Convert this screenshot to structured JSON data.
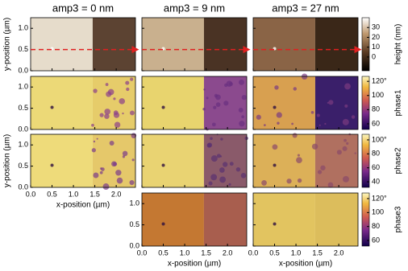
{
  "figure": {
    "columns": [
      "amp3 = 0 nm",
      "amp3 = 9 nm",
      "amp3 = 27 nm"
    ],
    "x_label": "x-position (µm)",
    "y_label": "y-position (µm)",
    "xlim": [
      0,
      2.45
    ],
    "ylim": [
      0,
      1.25
    ],
    "xticks": [
      {
        "value": 0,
        "label": "0.0"
      },
      {
        "value": 0.5,
        "label": "0.5"
      },
      {
        "value": 1,
        "label": "1.0"
      },
      {
        "value": 1.5,
        "label": "1.5"
      },
      {
        "value": 2,
        "label": "2.0"
      }
    ],
    "yticks": [
      {
        "value": 0,
        "label": "0.0"
      },
      {
        "value": 0.5,
        "label": "0.5"
      },
      {
        "value": 1,
        "label": "1.0"
      }
    ],
    "rows": [
      {
        "label": "height (nm)",
        "lim": [
          -14,
          40
        ],
        "ticks": [
          0,
          10,
          20,
          30
        ]
      },
      {
        "label": "phase1",
        "lim": [
          52,
          127
        ],
        "ticks": [
          60,
          80,
          100,
          {
            "value": 120,
            "label": "120°"
          }
        ]
      },
      {
        "label": "phase2",
        "lim": [
          32,
          108
        ],
        "ticks": [
          40,
          60,
          80,
          {
            "value": 100,
            "label": "100°"
          }
        ]
      },
      {
        "label": "phase3",
        "lim": [
          52,
          128
        ],
        "ticks": [
          60,
          80,
          100,
          {
            "value": 120,
            "label": "120°"
          }
        ]
      }
    ]
  }
}
